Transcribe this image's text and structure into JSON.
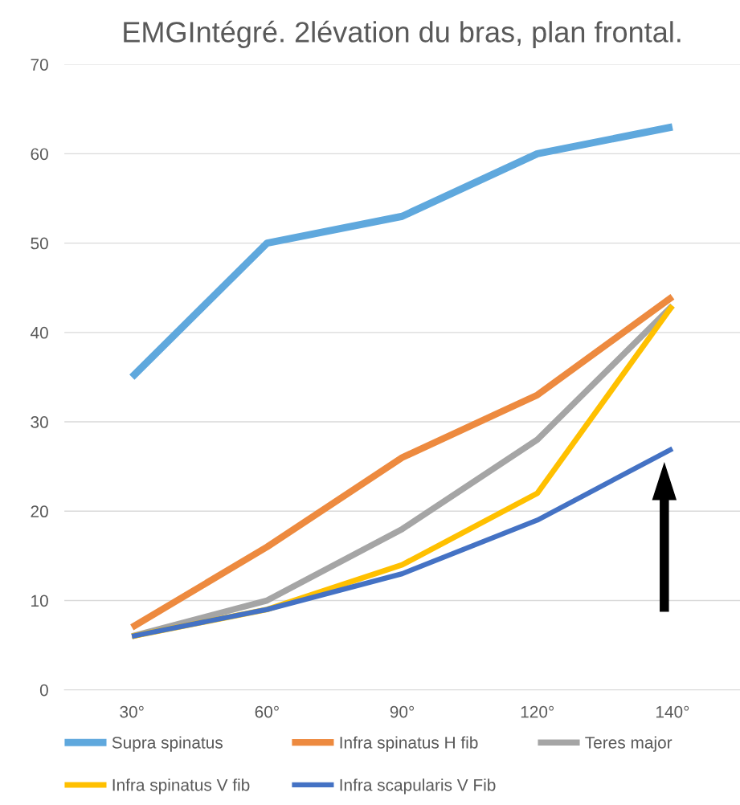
{
  "chart_data": {
    "type": "line",
    "title": "EMGIntégré. 2lévation du bras, plan frontal.",
    "categories": [
      "30°",
      "60°",
      "90°",
      "120°",
      "140°"
    ],
    "series": [
      {
        "name": "Supra spinatus",
        "color": "#5fa8dd",
        "values": [
          35,
          50,
          53,
          60,
          63
        ]
      },
      {
        "name": "Infra spinatus H fib",
        "color": "#ed8a3f",
        "values": [
          7,
          16,
          26,
          33,
          44
        ]
      },
      {
        "name": "Teres major",
        "color": "#a5a5a5",
        "values": [
          6,
          10,
          18,
          28,
          43
        ]
      },
      {
        "name": "Infra spinatus V fib",
        "color": "#ffc000",
        "values": [
          6,
          9,
          14,
          22,
          43
        ]
      },
      {
        "name": "Infra scapularis V Fib",
        "color": "#4472c4",
        "values": [
          6,
          9,
          13,
          19,
          27
        ]
      }
    ],
    "ylim": [
      0,
      70
    ],
    "yticks": [
      0,
      10,
      20,
      30,
      40,
      50,
      60,
      70
    ],
    "grid": "y",
    "legend": "bottom",
    "marker": "none",
    "line_style": "solid"
  }
}
